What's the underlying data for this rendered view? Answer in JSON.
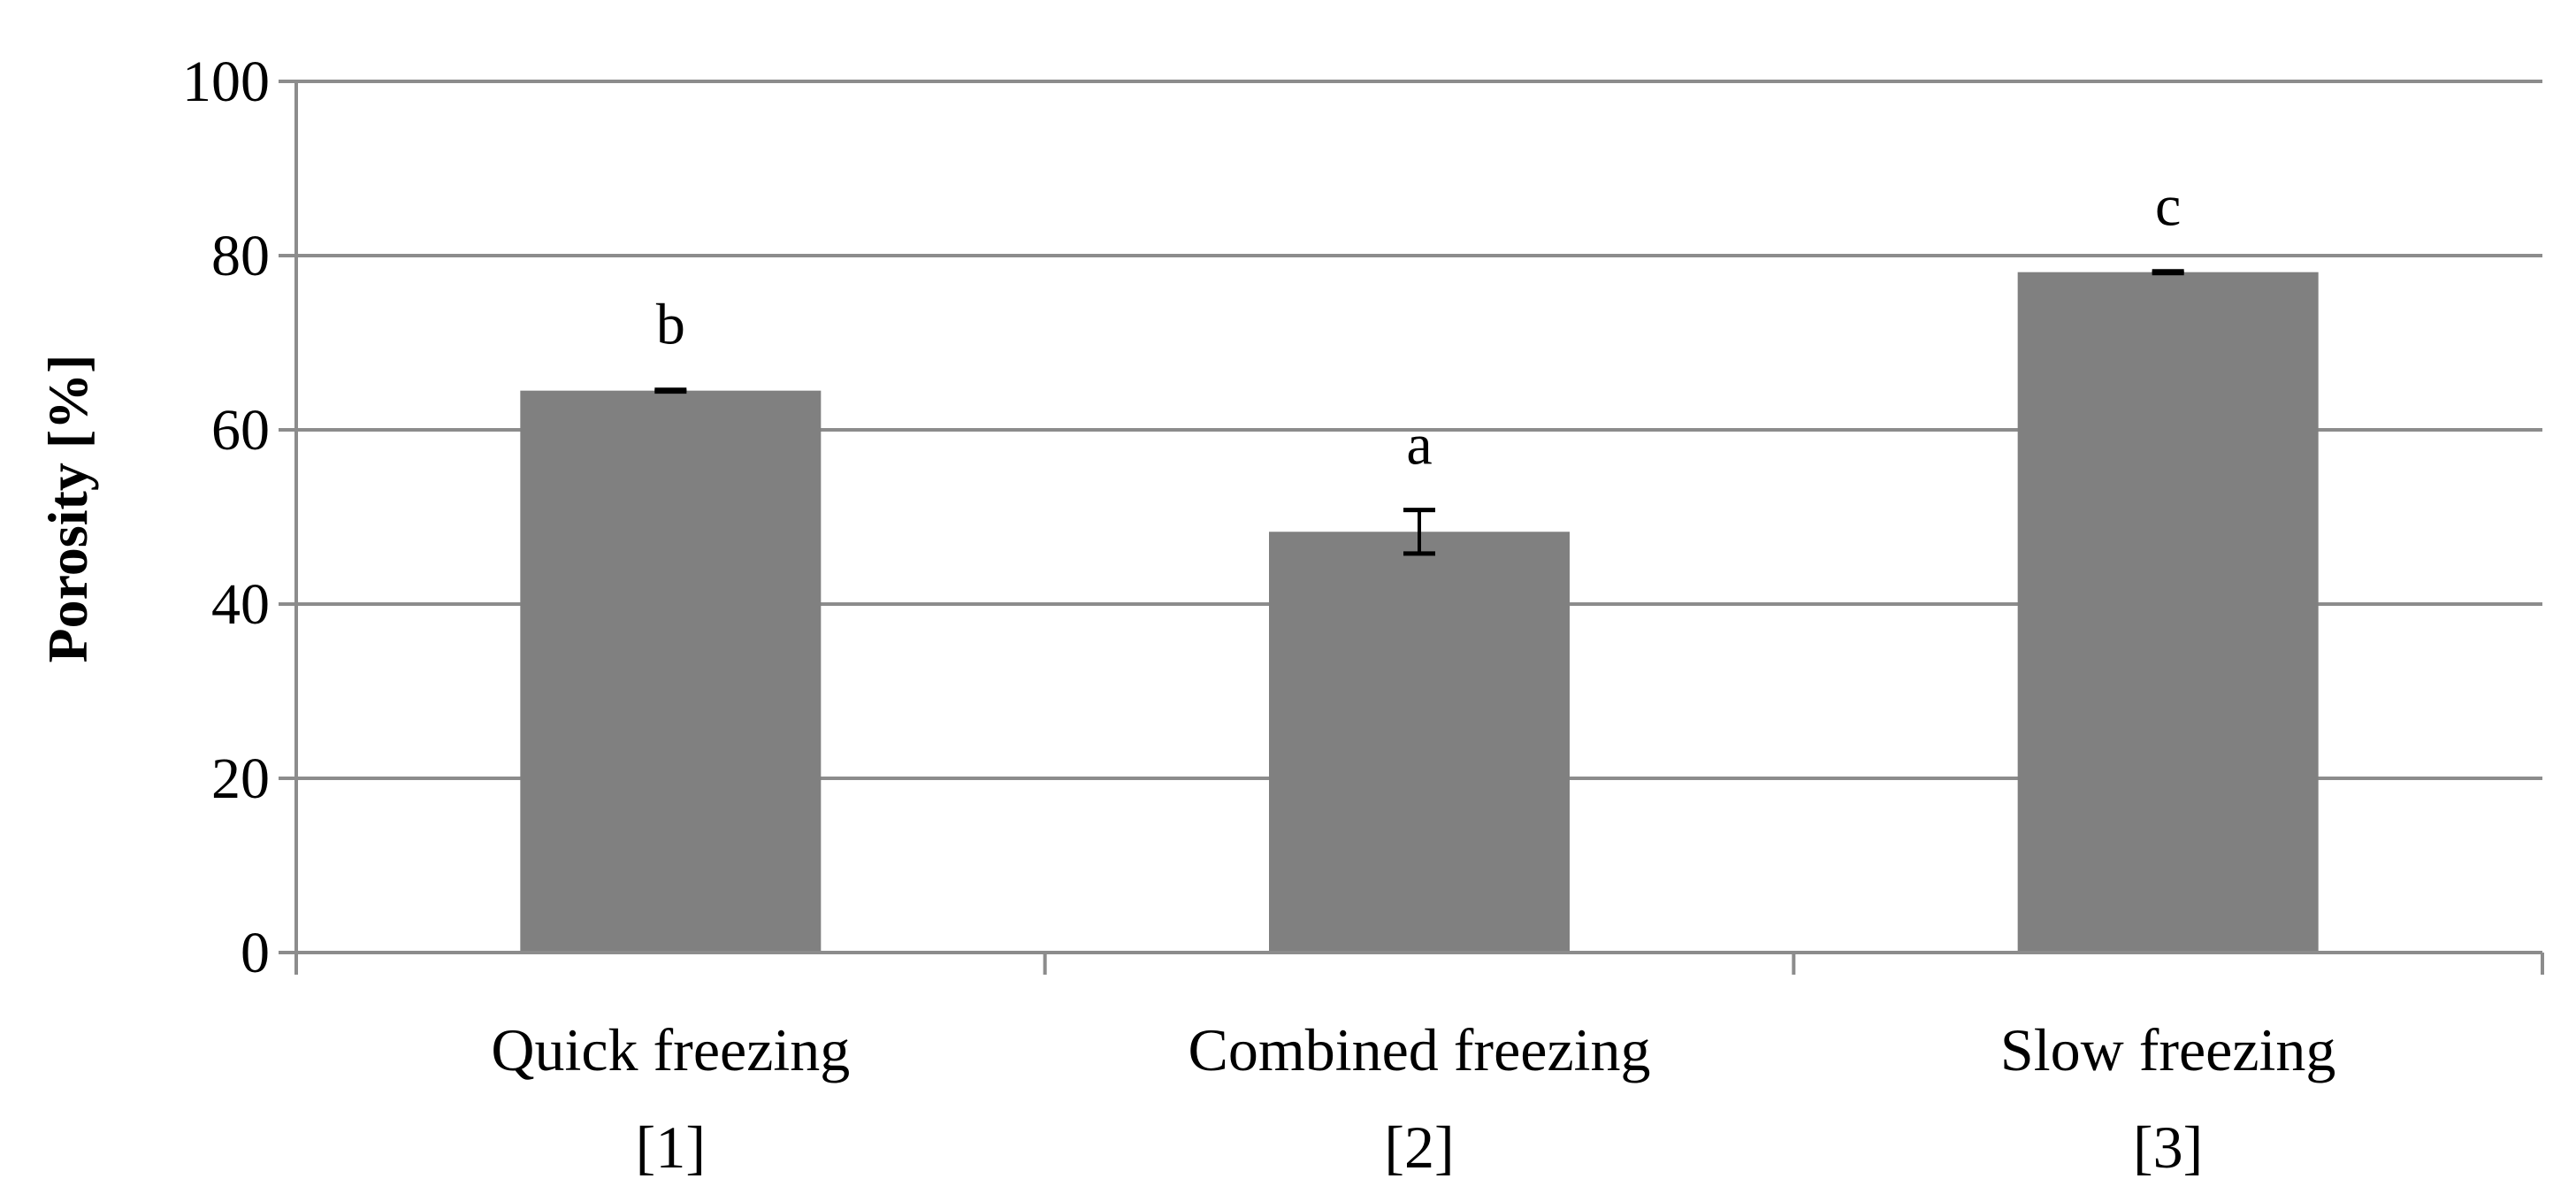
{
  "chart_data": {
    "type": "bar",
    "title": "",
    "xlabel": "",
    "ylabel": "Porosity [%]",
    "ylim": [
      0,
      100
    ],
    "yticks": [
      "0",
      "20",
      "40",
      "60",
      "80",
      "100"
    ],
    "grid": true,
    "legend": "none",
    "categories": [
      [
        "Quick freezing",
        "[1]"
      ],
      [
        "Combined freezing",
        "[2]"
      ],
      [
        "Slow freezing",
        "[3]"
      ]
    ],
    "values": [
      64.5,
      48.3,
      78.1
    ],
    "errors": [
      0.1,
      2.5,
      0.1
    ],
    "significance_labels": [
      "b",
      "a",
      "c"
    ],
    "colors": {
      "bar": "#808080",
      "grid": "#8c8c8c",
      "axis": "#8c8c8c",
      "error_bar": "#000000"
    }
  }
}
